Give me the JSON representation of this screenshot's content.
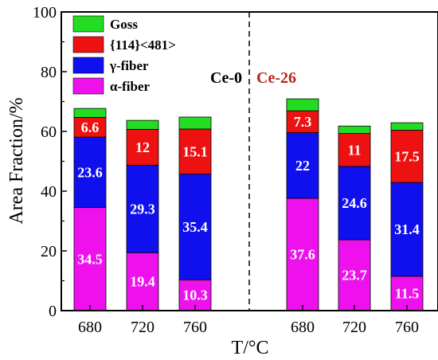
{
  "chart_data": {
    "type": "bar",
    "stacked": true,
    "ylabel": "Area Fraction/%",
    "xlabel": "T/°C",
    "ylim": [
      0,
      100
    ],
    "yticks": [
      0,
      20,
      40,
      60,
      80,
      100
    ],
    "groups": [
      {
        "name": "Ce-0",
        "name_color": "#000000",
        "categories": [
          "680",
          "720",
          "760"
        ]
      },
      {
        "name": "Ce-26",
        "name_color": "#b5281f",
        "categories": [
          "680",
          "720",
          "760"
        ]
      }
    ],
    "series": [
      {
        "name": "α-fiber",
        "color": "#ee11ee",
        "values": [
          34.5,
          19.4,
          10.3,
          37.6,
          23.7,
          11.5
        ],
        "labels": [
          "34.5",
          "19.4",
          "10.3",
          "37.6",
          "23.7",
          "11.5"
        ]
      },
      {
        "name": "γ-fiber",
        "color": "#1010ee",
        "values": [
          23.6,
          29.3,
          35.4,
          22,
          24.6,
          31.4
        ],
        "labels": [
          "23.6",
          "29.3",
          "35.4",
          "22",
          "24.6",
          "31.4"
        ]
      },
      {
        "name": "{114}<481>",
        "color": "#ee1111",
        "values": [
          6.6,
          12,
          15.1,
          7.3,
          11,
          17.5
        ],
        "labels": [
          "6.6",
          "12",
          "15.1",
          "7.3",
          "11",
          "17.5"
        ]
      },
      {
        "name": "Goss",
        "color": "#22dd22",
        "values": [
          3,
          3,
          4,
          4,
          2.5,
          2.5
        ],
        "labels": []
      }
    ],
    "legend_position": "top-left",
    "separator": "dashed vertical line between groups"
  }
}
